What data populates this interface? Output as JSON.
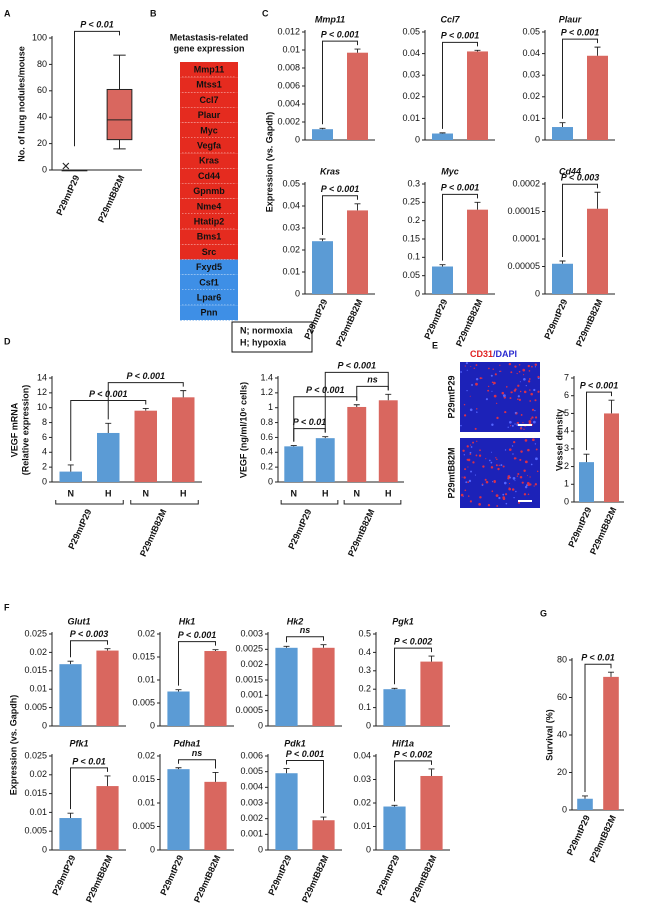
{
  "panel_labels": [
    "A",
    "B",
    "C",
    "D",
    "E",
    "F",
    "G"
  ],
  "gene_list": {
    "title": [
      "Metastasis-related",
      "gene expression"
    ],
    "up": [
      "Mmp11",
      "Mtss1",
      "Ccl7",
      "Plaur",
      "Myc",
      "Vegfa",
      "Kras",
      "Cd44",
      "Gpnmb",
      "Nme4",
      "Htatip2",
      "Bms1",
      "Src"
    ],
    "down": [
      "Fxyd5",
      "Csf1",
      "Lpar6",
      "Pnn"
    ],
    "up_color": "#e52b1f",
    "down_color": "#3e8fe6"
  },
  "shared_labels": {
    "C": "Expression (vs. Gapdh)",
    "F": "Expression (vs. Gapdh)"
  },
  "legend_note": [
    "N; normoxia",
    "H; hypoxia"
  ],
  "image_panel": {
    "title_parts": [
      {
        "text": "CD31",
        "color": "#e02020"
      },
      {
        "text": "/DAPI",
        "color": "#2a2ad0"
      }
    ],
    "rows": [
      "P29mtP29",
      "P29mtB82M"
    ]
  },
  "chart_data": [
    {
      "type": "box",
      "ylabel": "No. of lung nodules/mouse",
      "categories": [
        "P29mtP29",
        "P29mtB82M"
      ],
      "whisker_low": [
        0,
        16
      ],
      "q1": [
        0,
        23
      ],
      "median": [
        0,
        38
      ],
      "q3": [
        0,
        61
      ],
      "whisker_high": [
        0,
        87
      ],
      "outliers": [
        [
          3
        ],
        []
      ],
      "color": "#d9675f",
      "ylim": [
        0,
        100
      ],
      "yticks": [
        0,
        20,
        40,
        60,
        80,
        100
      ],
      "annotations": [
        "P < 0.01"
      ]
    },
    {
      "type": "bar",
      "title": "Mmp11",
      "categories": [
        "P29mtP29",
        "P29mtB82M"
      ],
      "values": [
        0.0012,
        0.0097
      ],
      "errors": [
        0.0001,
        0.0004
      ],
      "colors": [
        "#5b9bd5",
        "#d9675f"
      ],
      "ylim": [
        0,
        0.012
      ],
      "yticks": [
        0,
        0.002,
        0.004,
        0.006,
        0.008,
        0.01,
        0.012
      ],
      "annotations": [
        "P < 0.001"
      ]
    },
    {
      "type": "bar",
      "title": "Ccl7",
      "categories": [
        "P29mtP29",
        "P29mtB82M"
      ],
      "values": [
        0.003,
        0.041
      ],
      "errors": [
        0.0003,
        0.0005
      ],
      "colors": [
        "#5b9bd5",
        "#d9675f"
      ],
      "ylim": [
        0,
        0.05
      ],
      "yticks": [
        0,
        0.01,
        0.02,
        0.03,
        0.04,
        0.05
      ],
      "annotations": [
        "P < 0.001"
      ]
    },
    {
      "type": "bar",
      "title": "Plaur",
      "categories": [
        "P29mtP29",
        "P29mtB82M"
      ],
      "values": [
        0.006,
        0.039
      ],
      "errors": [
        0.002,
        0.004
      ],
      "colors": [
        "#5b9bd5",
        "#d9675f"
      ],
      "ylim": [
        0,
        0.05
      ],
      "yticks": [
        0,
        0.01,
        0.02,
        0.03,
        0.04,
        0.05
      ],
      "annotations": [
        "P < 0.001"
      ]
    },
    {
      "type": "bar",
      "title": "Kras",
      "categories": [
        "P29mtP29",
        "P29mtB82M"
      ],
      "values": [
        0.024,
        0.038
      ],
      "errors": [
        0.001,
        0.003
      ],
      "colors": [
        "#5b9bd5",
        "#d9675f"
      ],
      "ylim": [
        0,
        0.05
      ],
      "yticks": [
        0,
        0.01,
        0.02,
        0.03,
        0.04,
        0.05
      ],
      "annotations": [
        "P < 0.001"
      ]
    },
    {
      "type": "bar",
      "title": "Myc",
      "categories": [
        "P29mtP29",
        "P29mtB82M"
      ],
      "values": [
        0.075,
        0.23
      ],
      "errors": [
        0.005,
        0.02
      ],
      "colors": [
        "#5b9bd5",
        "#d9675f"
      ],
      "ylim": [
        0,
        0.3
      ],
      "yticks": [
        0,
        0.05,
        0.1,
        0.15,
        0.2,
        0.25,
        0.3
      ],
      "annotations": [
        "P < 0.001"
      ]
    },
    {
      "type": "bar",
      "title": "Cd44",
      "categories": [
        "P29mtP29",
        "P29mtB82M"
      ],
      "values": [
        5.5e-05,
        0.000155
      ],
      "errors": [
        5e-06,
        3e-05
      ],
      "colors": [
        "#5b9bd5",
        "#d9675f"
      ],
      "ylim": [
        0,
        0.0002
      ],
      "yticks": [
        0,
        5e-05,
        0.0001,
        0.00015,
        0.0002
      ],
      "annotations": [
        "P < 0.003"
      ]
    },
    {
      "type": "bar",
      "ylabel": [
        "VEGF mRNA",
        "(Relative expression)"
      ],
      "categories": [
        "N",
        "H",
        "N",
        "H"
      ],
      "groups": [
        "P29mtP29",
        "P29mtB82M"
      ],
      "values": [
        1.4,
        6.6,
        9.6,
        11.4
      ],
      "errors": [
        0.9,
        1.3,
        0.3,
        0.9
      ],
      "colors": [
        "#5b9bd5",
        "#5b9bd5",
        "#d9675f",
        "#d9675f"
      ],
      "ylim": [
        0,
        14
      ],
      "yticks": [
        0,
        2,
        4,
        6,
        8,
        10,
        12,
        14
      ],
      "annotations": [
        "P < 0.001",
        "P < 0.001"
      ]
    },
    {
      "type": "bar",
      "ylabel": [
        "VEGF (ng/ml/10⁶ cells)"
      ],
      "categories": [
        "N",
        "H",
        "N",
        "H"
      ],
      "groups": [
        "P29mtP29",
        "P29mtB82M"
      ],
      "values": [
        0.48,
        0.59,
        1.01,
        1.1
      ],
      "errors": [
        0.01,
        0.02,
        0.03,
        0.08
      ],
      "colors": [
        "#5b9bd5",
        "#5b9bd5",
        "#d9675f",
        "#d9675f"
      ],
      "ylim": [
        0,
        1.4
      ],
      "yticks": [
        0,
        0.2,
        0.4,
        0.6,
        0.8,
        1,
        1.2,
        1.4
      ],
      "annotations": [
        "P < 0.01",
        "P < 0.001",
        "ns",
        "P < 0.001"
      ]
    },
    {
      "type": "bar",
      "ylabel": [
        "Vessel density"
      ],
      "categories": [
        "P29mtP29",
        "P29mtB82M"
      ],
      "values": [
        2.25,
        5.0
      ],
      "errors": [
        0.45,
        0.75
      ],
      "colors": [
        "#5b9bd5",
        "#d9675f"
      ],
      "ylim": [
        0,
        7
      ],
      "yticks": [
        0,
        1,
        2,
        3,
        4,
        5,
        6,
        7
      ],
      "annotations": [
        "P < 0.001"
      ]
    },
    {
      "type": "bar",
      "title": "Glut1",
      "categories": [
        "P29mtP29",
        "P29mtB82M"
      ],
      "values": [
        0.0168,
        0.0205
      ],
      "errors": [
        0.0008,
        0.0005
      ],
      "colors": [
        "#5b9bd5",
        "#d9675f"
      ],
      "ylim": [
        0,
        0.025
      ],
      "yticks": [
        0,
        0.005,
        0.01,
        0.015,
        0.02,
        0.025
      ],
      "annotations": [
        "P < 0.003"
      ]
    },
    {
      "type": "bar",
      "title": "Hk1",
      "categories": [
        "P29mtP29",
        "P29mtB82M"
      ],
      "values": [
        0.0075,
        0.0163
      ],
      "errors": [
        0.0004,
        0.0003
      ],
      "colors": [
        "#5b9bd5",
        "#d9675f"
      ],
      "ylim": [
        0,
        0.02
      ],
      "yticks": [
        0,
        0.005,
        0.01,
        0.015,
        0.02
      ],
      "annotations": [
        "P < 0.001"
      ]
    },
    {
      "type": "bar",
      "title": "Hk2",
      "categories": [
        "P29mtP29",
        "P29mtB82M"
      ],
      "values": [
        0.00255,
        0.00255
      ],
      "errors": [
        5e-05,
        0.0001
      ],
      "colors": [
        "#5b9bd5",
        "#d9675f"
      ],
      "ylim": [
        0,
        0.003
      ],
      "yticks": [
        0,
        0.0005,
        0.001,
        0.0015,
        0.002,
        0.0025,
        0.003
      ],
      "annotations": [
        "ns"
      ]
    },
    {
      "type": "bar",
      "title": "Pgk1",
      "categories": [
        "P29mtP29",
        "P29mtB82M"
      ],
      "values": [
        0.2,
        0.35
      ],
      "errors": [
        0.005,
        0.03
      ],
      "colors": [
        "#5b9bd5",
        "#d9675f"
      ],
      "ylim": [
        0,
        0.5
      ],
      "yticks": [
        0,
        0.1,
        0.2,
        0.3,
        0.4,
        0.5
      ],
      "annotations": [
        "P < 0.002"
      ]
    },
    {
      "type": "bar",
      "title": "Pfk1",
      "categories": [
        "P29mtP29",
        "P29mtB82M"
      ],
      "values": [
        0.0085,
        0.017
      ],
      "errors": [
        0.0013,
        0.0027
      ],
      "colors": [
        "#5b9bd5",
        "#d9675f"
      ],
      "ylim": [
        0,
        0.025
      ],
      "yticks": [
        0,
        0.005,
        0.01,
        0.015,
        0.02,
        0.025
      ],
      "annotations": [
        "P < 0.01"
      ]
    },
    {
      "type": "bar",
      "title": "Pdha1",
      "categories": [
        "P29mtP29",
        "P29mtB82M"
      ],
      "values": [
        0.0172,
        0.0145
      ],
      "errors": [
        0.0003,
        0.002
      ],
      "colors": [
        "#5b9bd5",
        "#d9675f"
      ],
      "ylim": [
        0,
        0.02
      ],
      "yticks": [
        0,
        0.005,
        0.01,
        0.015,
        0.02
      ],
      "annotations": [
        "ns"
      ]
    },
    {
      "type": "bar",
      "title": "Pdk1",
      "categories": [
        "P29mtP29",
        "P29mtB82M"
      ],
      "values": [
        0.0049,
        0.0019
      ],
      "errors": [
        0.0003,
        0.0002
      ],
      "colors": [
        "#5b9bd5",
        "#d9675f"
      ],
      "ylim": [
        0,
        0.006
      ],
      "yticks": [
        0,
        0.001,
        0.002,
        0.003,
        0.004,
        0.005,
        0.006
      ],
      "annotations": [
        "P < 0.001"
      ]
    },
    {
      "type": "bar",
      "title": "Hif1a",
      "categories": [
        "P29mtP29",
        "P29mtB82M"
      ],
      "values": [
        0.0185,
        0.0315
      ],
      "errors": [
        0.0005,
        0.003
      ],
      "colors": [
        "#5b9bd5",
        "#d9675f"
      ],
      "ylim": [
        0,
        0.04
      ],
      "yticks": [
        0,
        0.01,
        0.02,
        0.03,
        0.04
      ],
      "annotations": [
        "P < 0.002"
      ]
    },
    {
      "type": "bar",
      "ylabel": [
        "Survival (%)"
      ],
      "categories": [
        "P29mtP29",
        "P29mtB82M"
      ],
      "values": [
        6,
        71
      ],
      "errors": [
        1.5,
        2.5
      ],
      "colors": [
        "#5b9bd5",
        "#d9675f"
      ],
      "ylim": [
        0,
        80
      ],
      "yticks": [
        0,
        20,
        40,
        60,
        80
      ],
      "annotations": [
        "P < 0.01"
      ]
    }
  ]
}
